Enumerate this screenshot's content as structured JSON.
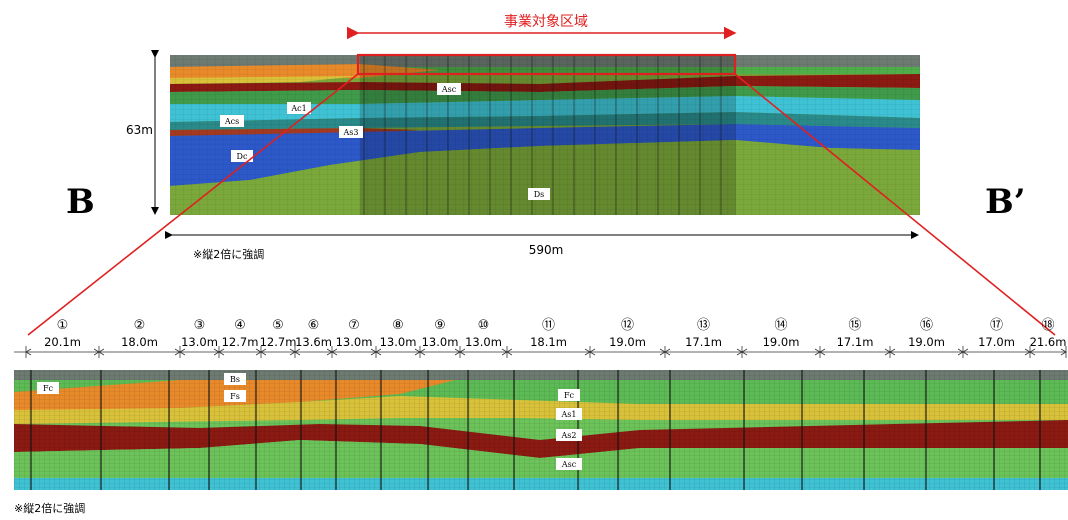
{
  "top_section": {
    "zone_label": "事業対象区域",
    "height_label": "63m",
    "width_label": "590m",
    "note": "※縦2倍に強調",
    "left_label": "B",
    "right_label": "B’",
    "layer_tags": [
      "Asc",
      "Ac1",
      "Acs",
      "As3",
      "Dc",
      "Ds"
    ]
  },
  "bottom_section": {
    "note": "※縦2倍に強調",
    "segments": [
      {
        "num": "①",
        "len": "20.1m"
      },
      {
        "num": "②",
        "len": "18.0m"
      },
      {
        "num": "③",
        "len": "13.0m"
      },
      {
        "num": "④",
        "len": "12.7m"
      },
      {
        "num": "⑤",
        "len": "12.7m"
      },
      {
        "num": "⑥",
        "len": "13.6m"
      },
      {
        "num": "⑦",
        "len": "13.0m"
      },
      {
        "num": "⑧",
        "len": "13.0m"
      },
      {
        "num": "⑨",
        "len": "13.0m"
      },
      {
        "num": "⑩",
        "len": "13.0m"
      },
      {
        "num": "⑪",
        "len": "18.1m"
      },
      {
        "num": "⑫",
        "len": "19.0m"
      },
      {
        "num": "⑬",
        "len": "17.1m"
      },
      {
        "num": "⑭",
        "len": "19.0m"
      },
      {
        "num": "⑮",
        "len": "17.1m"
      },
      {
        "num": "⑯",
        "len": "19.0m"
      },
      {
        "num": "⑰",
        "len": "17.0m"
      },
      {
        "num": "⑱",
        "len": "21.6m"
      }
    ],
    "layer_tags": [
      "Fc",
      "Bs",
      "Fs",
      "Fc",
      "As1",
      "As2",
      "Asc"
    ]
  },
  "colors": {
    "red": "#e02020",
    "dark_green": "#2f6b3a",
    "mid_green": "#3f9a4a",
    "light_green": "#6cc35a",
    "orange": "#e98a2a",
    "yellow": "#d9c23a",
    "maroon": "#8a1a12",
    "cyan": "#3fc2d4",
    "blue": "#2c58c8",
    "olive": "#7aa83a",
    "top_gray": "#6d7a72"
  }
}
